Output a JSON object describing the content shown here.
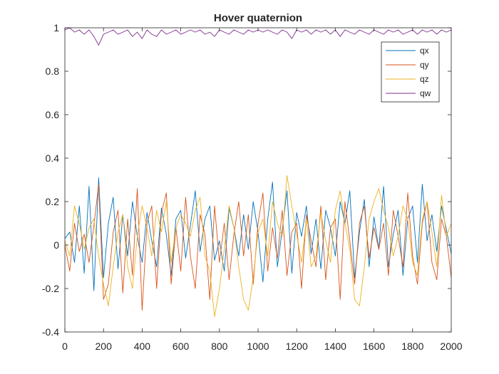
{
  "chart_data": {
    "type": "line",
    "title": "Hover quaternion",
    "xlabel": "",
    "ylabel": "",
    "xlim": [
      0,
      2000
    ],
    "ylim": [
      -0.4,
      1
    ],
    "xticks": [
      0,
      200,
      400,
      600,
      800,
      1000,
      1200,
      1400,
      1600,
      1800,
      2000
    ],
    "yticks": [
      -0.4,
      -0.2,
      0,
      0.2,
      0.4,
      0.6,
      0.8,
      1
    ],
    "grid": false,
    "legend_position": "top-right",
    "colors": {
      "qx": "#0072BD",
      "qy": "#D95319",
      "qz": "#EDB120",
      "qw": "#7E2F8E"
    },
    "x": [
      0,
      25,
      50,
      75,
      100,
      125,
      150,
      175,
      200,
      225,
      250,
      275,
      300,
      325,
      350,
      375,
      400,
      425,
      450,
      475,
      500,
      525,
      550,
      575,
      600,
      625,
      650,
      675,
      700,
      725,
      750,
      775,
      800,
      825,
      850,
      875,
      900,
      925,
      950,
      975,
      1000,
      1025,
      1050,
      1075,
      1100,
      1125,
      1150,
      1175,
      1200,
      1225,
      1250,
      1275,
      1300,
      1325,
      1350,
      1375,
      1400,
      1425,
      1450,
      1475,
      1500,
      1525,
      1550,
      1575,
      1600,
      1625,
      1650,
      1675,
      1700,
      1725,
      1750,
      1775,
      1800,
      1825,
      1850,
      1875,
      1900,
      1925,
      1950,
      1975,
      2000
    ],
    "series": [
      {
        "name": "qx",
        "values": [
          0.03,
          0.06,
          -0.08,
          0.18,
          -0.13,
          0.27,
          -0.21,
          0.31,
          -0.15,
          0.1,
          0.22,
          -0.11,
          0.14,
          -0.05,
          0.2,
          0.04,
          -0.08,
          0.15,
          0.02,
          -0.1,
          0.17,
          0.05,
          -0.14,
          0.12,
          0.16,
          -0.06,
          0.09,
          0.25,
          -0.03,
          0.12,
          0.18,
          -0.07,
          0.02,
          -0.12,
          0.17,
          0.08,
          -0.05,
          0.14,
          -0.02,
          0.2,
          0.06,
          -0.17,
          0.12,
          0.29,
          -0.1,
          0.07,
          0.25,
          -0.13,
          0.15,
          0.04,
          0.18,
          -0.04,
          0.12,
          -0.11,
          0.16,
          0.08,
          -0.05,
          0.2,
          0.1,
          0.25,
          -0.15,
          0.06,
          0.21,
          -0.1,
          0.13,
          -0.02,
          0.27,
          -0.1,
          0.05,
          0.16,
          -0.14,
          0.12,
          0.18,
          -0.08,
          0.28,
          0.02,
          0.14,
          -0.03,
          0.18,
          0.07,
          -0.04
        ]
      },
      {
        "name": "qy",
        "values": [
          0.0,
          -0.12,
          0.1,
          -0.03,
          0.05,
          -0.08,
          0.09,
          0.28,
          -0.25,
          -0.18,
          0.06,
          0.16,
          -0.22,
          0.12,
          -0.14,
          0.26,
          -0.3,
          0.1,
          0.18,
          -0.2,
          0.15,
          0.24,
          -0.18,
          0.08,
          -0.12,
          0.22,
          -0.05,
          -0.2,
          0.14,
          0.05,
          -0.25,
          0.18,
          -0.08,
          0.1,
          -0.16,
          0.05,
          0.2,
          -0.05,
          0.14,
          -0.18,
          0.1,
          0.24,
          -0.12,
          0.08,
          -0.06,
          0.16,
          -0.14,
          0.06,
          0.1,
          -0.2,
          0.14,
          0.02,
          -0.1,
          0.18,
          -0.16,
          0.08,
          0.12,
          -0.25,
          0.2,
          0.02,
          -0.18,
          0.1,
          0.18,
          -0.06,
          0.08,
          -0.02,
          0.1,
          -0.14,
          0.16,
          0.04,
          -0.1,
          0.24,
          -0.05,
          -0.18,
          0.1,
          0.2,
          -0.08,
          -0.16,
          0.12,
          0.04,
          -0.15
        ]
      },
      {
        "name": "qz",
        "values": [
          0.02,
          -0.05,
          0.18,
          0.1,
          -0.02,
          0.08,
          0.12,
          -0.05,
          -0.18,
          -0.28,
          -0.1,
          0.06,
          0.14,
          -0.1,
          -0.2,
          0.04,
          0.18,
          0.08,
          -0.05,
          0.16,
          0.06,
          0.2,
          -0.08,
          0.08,
          0.14,
          0.1,
          0.04,
          0.16,
          0.22,
          -0.05,
          -0.12,
          -0.33,
          -0.2,
          -0.02,
          0.18,
          0.08,
          -0.1,
          -0.25,
          -0.3,
          -0.15,
          0.06,
          0.12,
          -0.05,
          0.2,
          0.1,
          0.04,
          0.32,
          0.18,
          0.05,
          -0.08,
          0.12,
          -0.1,
          -0.05,
          0.15,
          0.02,
          -0.08,
          0.16,
          0.25,
          0.1,
          -0.02,
          -0.25,
          -0.28,
          -0.1,
          0.12,
          0.2,
          0.26,
          0.16,
          0.08,
          -0.05,
          0.04,
          0.18,
          0.12,
          -0.08,
          -0.14,
          0.12,
          0.2,
          0.06,
          -0.1,
          0.23,
          0.04,
          0.1
        ]
      },
      {
        "name": "qw",
        "values": [
          0.99,
          1.0,
          0.98,
          0.99,
          0.97,
          0.99,
          0.96,
          0.92,
          0.97,
          0.98,
          0.99,
          0.97,
          0.98,
          0.99,
          0.96,
          0.98,
          0.95,
          0.99,
          0.97,
          0.96,
          0.99,
          0.97,
          0.98,
          0.99,
          0.97,
          0.98,
          0.99,
          0.98,
          0.99,
          0.97,
          0.98,
          0.96,
          0.99,
          0.98,
          0.97,
          0.99,
          0.98,
          0.97,
          0.99,
          0.98,
          0.99,
          0.98,
          0.99,
          0.98,
          0.97,
          0.99,
          0.98,
          0.95,
          0.99,
          0.98,
          0.99,
          0.97,
          0.99,
          0.98,
          0.99,
          0.97,
          0.99,
          0.96,
          0.99,
          0.98,
          0.97,
          0.99,
          0.98,
          0.97,
          0.99,
          0.98,
          0.97,
          0.99,
          0.98,
          0.99,
          0.97,
          0.98,
          0.99,
          0.97,
          0.99,
          0.98,
          0.99,
          0.97,
          0.99,
          0.98,
          0.99
        ]
      }
    ]
  }
}
